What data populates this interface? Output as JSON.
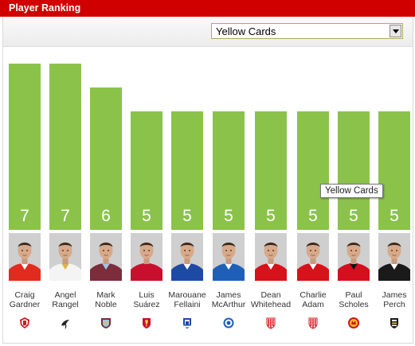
{
  "header": {
    "title": "Player Ranking"
  },
  "filter": {
    "selected": "Yellow Cards"
  },
  "tooltip": {
    "text": "Yellow Cards"
  },
  "colors": {
    "header": "#d00000",
    "bar": "#8bc34a"
  },
  "chart_data": {
    "type": "bar",
    "metric": "Yellow Cards",
    "categories": [
      "Craig Gardner",
      "Angel Rangel",
      "Mark Noble",
      "Luis Suárez",
      "Marouane Fellaini",
      "James McArthur",
      "Dean Whitehead",
      "Charlie Adam",
      "Paul Scholes",
      "James Perch"
    ],
    "values": [
      7,
      7,
      6,
      5,
      5,
      5,
      5,
      5,
      5,
      5
    ]
  },
  "players": [
    {
      "first": "Craig",
      "last": "Gardner",
      "value": 7,
      "club_icon": "sunderland-crest-icon",
      "kit": "#e22b1f",
      "kit2": "#ffffff"
    },
    {
      "first": "Angel",
      "last": "Rangel",
      "value": 7,
      "club_icon": "swansea-crest-icon",
      "kit": "#f4f4f4",
      "kit2": "#d8b64a"
    },
    {
      "first": "Mark",
      "last": "Noble",
      "value": 6,
      "club_icon": "west-ham-crest-icon",
      "kit": "#7c2c3b",
      "kit2": "#9fc7e7"
    },
    {
      "first": "Luis",
      "last": "Suárez",
      "value": 5,
      "club_icon": "liverpool-crest-icon",
      "kit": "#c8102e",
      "kit2": "#c8102e"
    },
    {
      "first": "Marouane",
      "last": "Fellaini",
      "value": 5,
      "club_icon": "everton-crest-icon",
      "kit": "#1d4aa3",
      "kit2": "#ffffff"
    },
    {
      "first": "James",
      "last": "McArthur",
      "value": 5,
      "club_icon": "wigan-crest-icon",
      "kit": "#1f5fb8",
      "kit2": "#ffffff"
    },
    {
      "first": "Dean",
      "last": "Whitehead",
      "value": 5,
      "club_icon": "stoke-crest-icon",
      "kit": "#d6121b",
      "kit2": "#ffffff"
    },
    {
      "first": "Charlie",
      "last": "Adam",
      "value": 5,
      "club_icon": "stoke-crest-icon",
      "kit": "#d6121b",
      "kit2": "#ffffff"
    },
    {
      "first": "Paul",
      "last": "Scholes",
      "value": 5,
      "club_icon": "man-utd-crest-icon",
      "kit": "#d4101e",
      "kit2": "#111111"
    },
    {
      "first": "James",
      "last": "Perch",
      "value": 5,
      "club_icon": "newcastle-crest-icon",
      "kit": "#1a1a1a",
      "kit2": "#ffffff"
    }
  ]
}
